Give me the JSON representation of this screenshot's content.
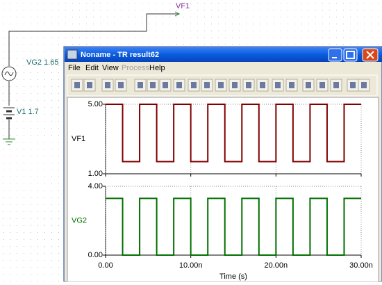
{
  "schematic": {
    "probe": "VF1",
    "source": "VG2 1.65",
    "battery": "V1 1.7"
  },
  "window": {
    "title": "Noname - TR result62",
    "menu": [
      "File",
      "Edit",
      "View",
      "Process",
      "Help"
    ]
  },
  "plots": {
    "xlim": [
      0,
      3e-08
    ],
    "xticks": [
      {
        "value": 0,
        "label": "0.00"
      },
      {
        "value": 1e-08,
        "label": "10.00n"
      },
      {
        "value": 2e-08,
        "label": "20.00n"
      },
      {
        "value": 3e-08,
        "label": "30.00n"
      }
    ],
    "x_label": "Time (s)",
    "x": [
      0,
      2e-09,
      2e-09,
      4e-09,
      4e-09,
      6e-09,
      6e-09,
      8e-09,
      8e-09,
      1e-08,
      1e-08,
      1.2e-08,
      1.2e-08,
      1.4e-08,
      1.4e-08,
      1.6e-08,
      1.6e-08,
      1.8e-08,
      1.8e-08,
      2e-08,
      2e-08,
      2.2e-08,
      2.2e-08,
      2.4e-08,
      2.4e-08,
      2.6e-08,
      2.6e-08,
      2.8e-08,
      2.8e-08,
      3e-08
    ],
    "panels": [
      {
        "name": "VF1",
        "color": "#800000",
        "ylim": [
          1,
          5
        ],
        "yticks": [
          {
            "value": 1,
            "label": "1.00"
          },
          {
            "value": 5,
            "label": "5.00"
          }
        ],
        "values": [
          5,
          5,
          1.7,
          1.7,
          5,
          5,
          1.7,
          1.7,
          5,
          5,
          1.7,
          1.7,
          5,
          5,
          1.7,
          1.7,
          5,
          5,
          1.7,
          1.7,
          5,
          5,
          1.7,
          1.7,
          5,
          5,
          1.7,
          1.7,
          5,
          5
        ]
      },
      {
        "name": "VG2",
        "color": "#007000",
        "ylim": [
          0,
          4
        ],
        "yticks": [
          {
            "value": 0,
            "label": "0.00"
          },
          {
            "value": 4,
            "label": "4.00"
          }
        ],
        "values": [
          3.3,
          3.3,
          0,
          0,
          3.3,
          3.3,
          0,
          0,
          3.3,
          3.3,
          0,
          0,
          3.3,
          3.3,
          0,
          0,
          3.3,
          3.3,
          0,
          0,
          3.3,
          3.3,
          0,
          0,
          3.3,
          3.3,
          0,
          0,
          3.3,
          3.3
        ]
      }
    ]
  }
}
